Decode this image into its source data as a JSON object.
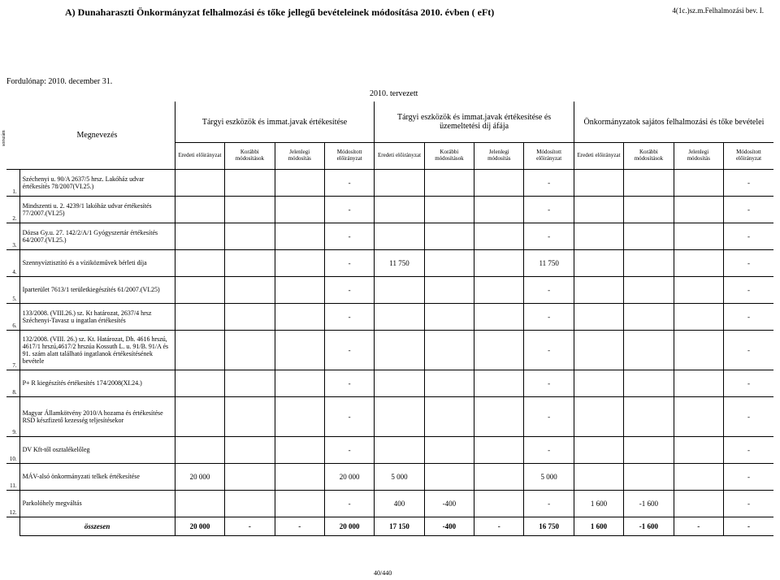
{
  "header": {
    "title": "A) Dunaharaszti Önkormányzat felhalmozási és tőke jellegű bevételeinek módosítása 2010. évben ( eFt)",
    "corner": "4(1c.)sz.m.Felhalmozási bev. I.",
    "date": "Fordulónap: 2010. december 31.",
    "planned": "2010. tervezett",
    "rotated": "sorszám",
    "page": "40/440"
  },
  "groupHeaders": {
    "name": "Megnevezés",
    "g1": "Tárgyi eszközök és immat.javak értékesítése",
    "g2": "Tárgyi eszközök és immat.javak értékesítése és üzemeltetési díj áfája",
    "g3": "Önkormányzatok sajátos felhalmozási és tőke bevételei"
  },
  "subHeaders": {
    "c1": "Eredeti előirányzat",
    "c2": "Korábbi módosítások",
    "c3": "Jelenlegi módosítás",
    "c4": "Módosított előirányzat",
    "c5": "Eredeti előirányzat",
    "c6": "Korábbi módosítások",
    "c7": "Jelenlegi módosítás",
    "c8": "Módosított előirányzat",
    "c9": "Eredeti előirányzat",
    "c10": "Korábbi módosítások",
    "c11": "Jelenlegi módosítás",
    "c12": "Módosított előirányzat"
  },
  "rows": [
    {
      "n": "1.",
      "name": "Széchenyi u. 90/A 2637/5 hrsz. Lakóház udvar értékesítés 78/2007(VI.25.)",
      "v": [
        "",
        "",
        "",
        "-",
        "",
        "",
        "",
        "-",
        "",
        "",
        "",
        "-"
      ]
    },
    {
      "n": "2.",
      "name": "Mindszenti u. 2. 4239/1 lakóház udvar értékesítés 77/2007.(VI.25)",
      "v": [
        "",
        "",
        "",
        "-",
        "",
        "",
        "",
        "-",
        "",
        "",
        "",
        "-"
      ]
    },
    {
      "n": "3.",
      "name": "Dózsa Gy.u. 27. 142/2/A/1 Gyógyszertár értékesítés 64/2007.(VI.25.)",
      "v": [
        "",
        "",
        "",
        "-",
        "",
        "",
        "",
        "-",
        "",
        "",
        "",
        "-"
      ]
    },
    {
      "n": "4.",
      "name": "Szennyvíztisztító és a víziközművek bérleti díja",
      "v": [
        "",
        "",
        "",
        "-",
        "11 750",
        "",
        "",
        "11 750",
        "",
        "",
        "",
        "-"
      ]
    },
    {
      "n": "5.",
      "name": "Iparterület 7613/1 területkiegészítés 61/2007.(VI.25)",
      "v": [
        "",
        "",
        "",
        "-",
        "",
        "",
        "",
        "-",
        "",
        "",
        "",
        "-"
      ]
    },
    {
      "n": "6.",
      "name": "133/2008. (VIII.26.) sz. Kt határozat, 2637/4 hrsz Széchenyi-Tavasz u ingatlan értékesítés",
      "v": [
        "",
        "",
        "",
        "-",
        "",
        "",
        "",
        "-",
        "",
        "",
        "",
        "-"
      ]
    },
    {
      "n": "7.",
      "name": "132/2008. (VIII. 26.) sz. Kt. Határozat, Dh. 4616 hrszú, 4617/1 hrszú,4617/2 hrszúa Kossuth L. u. 91/B. 91/A és 91. szám alatt található ingatlanok értékesítésének bevétele",
      "v": [
        "",
        "",
        "",
        "-",
        "",
        "",
        "",
        "-",
        "",
        "",
        "",
        "-"
      ],
      "tall": true
    },
    {
      "n": "8.",
      "name": "P+ R kiegészítés értékesítés 174/2008(XI.24.)",
      "v": [
        "",
        "",
        "",
        "-",
        "",
        "",
        "",
        "-",
        "",
        "",
        "",
        "-"
      ]
    },
    {
      "n": "9.",
      "name": "Magyar Államkötvény 2010/A hozama és értékesítése RSD készfizető kezesség teljesítésekor",
      "v": [
        "",
        "",
        "",
        "-",
        "",
        "",
        "",
        "-",
        "",
        "",
        "",
        "-"
      ],
      "tall": true
    },
    {
      "n": "10.",
      "name": "DV Kft-től osztalékelőleg",
      "v": [
        "",
        "",
        "",
        "-",
        "",
        "",
        "",
        "-",
        "",
        "",
        "",
        "-"
      ]
    },
    {
      "n": "11.",
      "name": "MÁV-alsó önkormányzati telkek értékesítése",
      "v": [
        "20 000",
        "",
        "",
        "20 000",
        "5 000",
        "",
        "",
        "5 000",
        "",
        "",
        "",
        "-"
      ]
    },
    {
      "n": "12.",
      "name": "Parkolóhely megváltás",
      "v": [
        "",
        "",
        "",
        "-",
        "400",
        "-400",
        "",
        "-",
        "1 600",
        "-1 600",
        "",
        "-"
      ]
    }
  ],
  "sum": {
    "label": "összesen",
    "v": [
      "20 000",
      "-",
      "-",
      "20 000",
      "17 150",
      "-400",
      "-",
      "16 750",
      "1 600",
      "-1 600",
      "-",
      "-"
    ]
  }
}
